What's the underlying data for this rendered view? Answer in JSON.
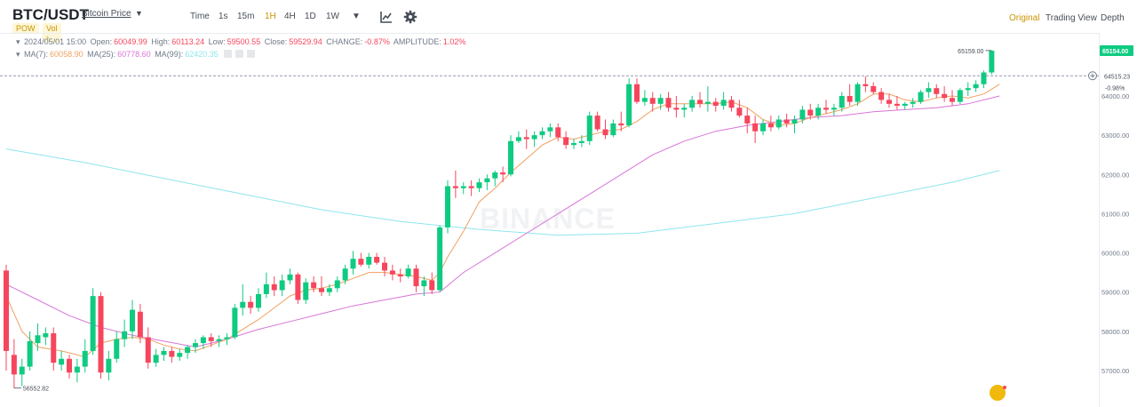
{
  "header": {
    "pair": "BTC/USDT",
    "pair_link": "Bitcoin Price",
    "tag_pow": "POW",
    "tag_vol": "Vol",
    "intervals": [
      "Time",
      "1s",
      "15m",
      "1H",
      "4H",
      "1D",
      "1W"
    ],
    "active_interval": "1H",
    "views": [
      "Original",
      "Trading View",
      "Depth"
    ],
    "active_view": "Original",
    "icons": [
      "chevron-down-icon",
      "indicator-icon",
      "settings-gear-icon"
    ]
  },
  "legend": {
    "candle_line": {
      "datetime": "2024/05/01 15:00",
      "open_label": "Open:",
      "open": "60049.99",
      "high_label": "High:",
      "high": "60113.24",
      "low_label": "Low:",
      "low": "59500.55",
      "close_label": "Close:",
      "close": "59529.94",
      "change_label": "CHANGE:",
      "change": "-0.87%",
      "amplitude_label": "AMPLITUDE:",
      "amplitude": "1.02%"
    },
    "ma_line": {
      "ma7_label": "MA(7):",
      "ma7": "60058.90",
      "ma25_label": "MA(25):",
      "ma25": "60778.60",
      "ma99_label": "MA(99):",
      "ma99": "62420.35"
    }
  },
  "watermark": "BINANCE",
  "annotations": {
    "high_marker": "65159.00",
    "low_marker": "56552.82",
    "crosshair_price": "64515.23",
    "crosshair_change": "-0.98%",
    "last_price": "65154.00"
  },
  "colors": {
    "up": "#0ecb81",
    "down": "#f6465d",
    "ma7": "#f0a060",
    "ma25": "#d875d8",
    "ma99": "#8ee6ee",
    "accent": "#c99400"
  },
  "chart_data": {
    "type": "candlestick",
    "y_ticks": [
      57000,
      58000,
      59000,
      60000,
      61000,
      62000,
      63000,
      64000
    ],
    "y_tick_labels": [
      "57000.00",
      "58000.00",
      "59000.00",
      "60000.00",
      "61000.00",
      "62000.00",
      "63000.00",
      "64000.00"
    ],
    "ylim": [
      56300,
      65800
    ],
    "grid": false,
    "candles": [
      [
        59550,
        59700,
        57000,
        57500
      ],
      [
        57400,
        57800,
        56553,
        56900
      ],
      [
        56900,
        57300,
        56600,
        57100
      ],
      [
        57100,
        58000,
        57000,
        57750
      ],
      [
        57700,
        58200,
        57500,
        57900
      ],
      [
        57850,
        58100,
        57650,
        57950
      ],
      [
        57950,
        58100,
        57000,
        57200
      ],
      [
        57150,
        57500,
        57000,
        57300
      ],
      [
        57300,
        57400,
        56800,
        56950
      ],
      [
        56950,
        57300,
        56700,
        57100
      ],
      [
        57100,
        57800,
        56950,
        57500
      ],
      [
        57500,
        59100,
        57400,
        58900
      ],
      [
        58900,
        59000,
        56800,
        56950
      ],
      [
        56950,
        57500,
        56750,
        57300
      ],
      [
        57300,
        58000,
        57200,
        57800
      ],
      [
        57800,
        58300,
        57600,
        58000
      ],
      [
        58000,
        58800,
        57800,
        58550
      ],
      [
        58500,
        58700,
        57700,
        57850
      ],
      [
        57850,
        58100,
        57050,
        57200
      ],
      [
        57200,
        57550,
        57100,
        57400
      ],
      [
        57400,
        57600,
        57250,
        57500
      ],
      [
        57500,
        57600,
        57200,
        57350
      ],
      [
        57350,
        57550,
        57250,
        57450
      ],
      [
        57450,
        57650,
        57300,
        57600
      ],
      [
        57600,
        57800,
        57450,
        57700
      ],
      [
        57700,
        57900,
        57550,
        57850
      ],
      [
        57850,
        57950,
        57600,
        57750
      ],
      [
        57750,
        57900,
        57600,
        57800
      ],
      [
        57800,
        57950,
        57650,
        57850
      ],
      [
        57850,
        58700,
        57800,
        58600
      ],
      [
        58600,
        59200,
        58400,
        58750
      ],
      [
        58750,
        58900,
        58450,
        58600
      ],
      [
        58600,
        59100,
        58500,
        58950
      ],
      [
        58950,
        59500,
        58850,
        59200
      ],
      [
        59200,
        59400,
        58900,
        59050
      ],
      [
        59050,
        59450,
        58900,
        59300
      ],
      [
        59300,
        59600,
        59200,
        59450
      ],
      [
        59450,
        59500,
        58700,
        58800
      ],
      [
        58800,
        59350,
        58700,
        59250
      ],
      [
        59250,
        59400,
        59000,
        59100
      ],
      [
        59100,
        59400,
        58900,
        59000
      ],
      [
        59000,
        59200,
        58900,
        59100
      ],
      [
        59100,
        59400,
        59000,
        59300
      ],
      [
        59300,
        59700,
        59200,
        59600
      ],
      [
        59600,
        60050,
        59450,
        59850
      ],
      [
        59850,
        60000,
        59650,
        59700
      ],
      [
        59700,
        60000,
        59600,
        59900
      ],
      [
        59900,
        60000,
        59700,
        59750
      ],
      [
        59750,
        59900,
        59400,
        59550
      ],
      [
        59550,
        59700,
        59300,
        59450
      ],
      [
        59450,
        59600,
        59250,
        59400
      ],
      [
        59400,
        59700,
        59350,
        59600
      ],
      [
        59600,
        59700,
        59000,
        59150
      ],
      [
        59150,
        59400,
        58900,
        59300
      ],
      [
        59300,
        59500,
        58950,
        59050
      ],
      [
        59050,
        60700,
        59000,
        60650
      ],
      [
        60650,
        61850,
        60500,
        61700
      ],
      [
        61700,
        62100,
        61400,
        61650
      ],
      [
        61650,
        61800,
        61500,
        61700
      ],
      [
        61700,
        61850,
        61450,
        61650
      ],
      [
        61650,
        61900,
        61550,
        61800
      ],
      [
        61800,
        62000,
        61600,
        61900
      ],
      [
        61900,
        62100,
        61700,
        62050
      ],
      [
        62050,
        62200,
        61800,
        62000
      ],
      [
        62000,
        63000,
        61950,
        62850
      ],
      [
        62850,
        63100,
        62800,
        62950
      ],
      [
        62950,
        63150,
        62650,
        62900
      ],
      [
        62900,
        63100,
        62700,
        63000
      ],
      [
        63000,
        63200,
        62900,
        63100
      ],
      [
        63100,
        63300,
        62950,
        63200
      ],
      [
        63200,
        63300,
        62850,
        62950
      ],
      [
        62950,
        63100,
        62650,
        62750
      ],
      [
        62750,
        62900,
        62650,
        62800
      ],
      [
        62800,
        63000,
        62700,
        62850
      ],
      [
        62850,
        63600,
        62750,
        63500
      ],
      [
        63500,
        63600,
        63100,
        63150
      ],
      [
        63150,
        63400,
        62900,
        63000
      ],
      [
        63000,
        63400,
        62950,
        63300
      ],
      [
        63300,
        63600,
        63100,
        63250
      ],
      [
        63250,
        64450,
        63200,
        64300
      ],
      [
        64300,
        64450,
        63800,
        63850
      ],
      [
        63850,
        64150,
        63750,
        63950
      ],
      [
        63950,
        64100,
        63600,
        63800
      ],
      [
        63800,
        64050,
        63650,
        63950
      ],
      [
        63950,
        64100,
        63600,
        63700
      ],
      [
        63700,
        64000,
        63450,
        63650
      ],
      [
        63650,
        63800,
        63450,
        63700
      ],
      [
        63700,
        64000,
        63600,
        63900
      ],
      [
        63900,
        64100,
        63700,
        63800
      ],
      [
        63800,
        64250,
        63600,
        63850
      ],
      [
        63850,
        63950,
        63600,
        63750
      ],
      [
        63750,
        64100,
        63650,
        63900
      ],
      [
        63900,
        64000,
        63600,
        63700
      ],
      [
        63700,
        63900,
        63450,
        63500
      ],
      [
        63500,
        63700,
        63050,
        63300
      ],
      [
        63300,
        63500,
        62800,
        63100
      ],
      [
        63100,
        63400,
        63000,
        63300
      ],
      [
        63300,
        63500,
        63100,
        63200
      ],
      [
        63200,
        63500,
        63150,
        63400
      ],
      [
        63400,
        63550,
        63200,
        63300
      ],
      [
        63300,
        63500,
        63050,
        63400
      ],
      [
        63400,
        63750,
        63300,
        63650
      ],
      [
        63650,
        63800,
        63400,
        63500
      ],
      [
        63500,
        63800,
        63400,
        63700
      ],
      [
        63700,
        63900,
        63550,
        63650
      ],
      [
        63650,
        63800,
        63500,
        63700
      ],
      [
        63700,
        64100,
        63600,
        64000
      ],
      [
        64000,
        64300,
        63750,
        63850
      ],
      [
        63850,
        64350,
        63750,
        64300
      ],
      [
        64300,
        64500,
        64100,
        64250
      ],
      [
        64250,
        64350,
        64050,
        64100
      ],
      [
        64100,
        64200,
        63800,
        63900
      ],
      [
        63900,
        64050,
        63700,
        63800
      ],
      [
        63800,
        64000,
        63650,
        63750
      ],
      [
        63750,
        63850,
        63650,
        63800
      ],
      [
        63800,
        63950,
        63700,
        63850
      ],
      [
        63850,
        64150,
        63800,
        64100
      ],
      [
        64100,
        64350,
        63950,
        64200
      ],
      [
        64200,
        64300,
        63950,
        64050
      ],
      [
        64050,
        64250,
        63850,
        63950
      ],
      [
        63950,
        64150,
        63750,
        63850
      ],
      [
        63850,
        64200,
        63800,
        64150
      ],
      [
        64150,
        64350,
        64000,
        64200
      ],
      [
        64200,
        64400,
        64100,
        64300
      ],
      [
        64300,
        64650,
        64200,
        64600
      ],
      [
        64600,
        65159,
        64550,
        65154
      ]
    ],
    "ma7": [
      [
        0,
        58900
      ],
      [
        2,
        58000
      ],
      [
        4,
        57600
      ],
      [
        7,
        57500
      ],
      [
        10,
        57350
      ],
      [
        12,
        57700
      ],
      [
        14,
        57800
      ],
      [
        16,
        57850
      ],
      [
        18,
        57800
      ],
      [
        20,
        57650
      ],
      [
        22,
        57550
      ],
      [
        24,
        57500
      ],
      [
        26,
        57650
      ],
      [
        28,
        57800
      ],
      [
        30,
        58050
      ],
      [
        32,
        58300
      ],
      [
        34,
        58600
      ],
      [
        36,
        58900
      ],
      [
        38,
        59050
      ],
      [
        40,
        59100
      ],
      [
        42,
        59200
      ],
      [
        44,
        59350
      ],
      [
        46,
        59500
      ],
      [
        48,
        59500
      ],
      [
        50,
        59450
      ],
      [
        52,
        59400
      ],
      [
        54,
        59300
      ],
      [
        55,
        59500
      ],
      [
        56,
        59900
      ],
      [
        58,
        60550
      ],
      [
        60,
        61300
      ],
      [
        62,
        61650
      ],
      [
        64,
        62050
      ],
      [
        66,
        62400
      ],
      [
        68,
        62750
      ],
      [
        70,
        62950
      ],
      [
        72,
        62900
      ],
      [
        74,
        63000
      ],
      [
        76,
        63100
      ],
      [
        78,
        63150
      ],
      [
        80,
        63350
      ],
      [
        82,
        63650
      ],
      [
        84,
        63800
      ],
      [
        86,
        63800
      ],
      [
        88,
        63800
      ],
      [
        90,
        63800
      ],
      [
        92,
        63850
      ],
      [
        94,
        63700
      ],
      [
        96,
        63400
      ],
      [
        98,
        63250
      ],
      [
        100,
        63300
      ],
      [
        102,
        63450
      ],
      [
        104,
        63550
      ],
      [
        106,
        63650
      ],
      [
        108,
        63800
      ],
      [
        110,
        64050
      ],
      [
        112,
        64050
      ],
      [
        114,
        63900
      ],
      [
        116,
        63850
      ],
      [
        118,
        63950
      ],
      [
        120,
        64000
      ],
      [
        122,
        63950
      ],
      [
        124,
        64050
      ],
      [
        126,
        64300
      ]
    ],
    "ma25": [
      [
        0,
        59200
      ],
      [
        4,
        58800
      ],
      [
        8,
        58400
      ],
      [
        12,
        58100
      ],
      [
        16,
        57900
      ],
      [
        20,
        57750
      ],
      [
        24,
        57600
      ],
      [
        28,
        57800
      ],
      [
        32,
        58050
      ],
      [
        36,
        58250
      ],
      [
        40,
        58450
      ],
      [
        44,
        58650
      ],
      [
        48,
        58800
      ],
      [
        52,
        58950
      ],
      [
        55,
        59000
      ],
      [
        58,
        59500
      ],
      [
        62,
        60000
      ],
      [
        66,
        60500
      ],
      [
        70,
        61000
      ],
      [
        74,
        61500
      ],
      [
        78,
        62000
      ],
      [
        82,
        62500
      ],
      [
        86,
        62850
      ],
      [
        90,
        63100
      ],
      [
        94,
        63250
      ],
      [
        98,
        63350
      ],
      [
        102,
        63450
      ],
      [
        106,
        63500
      ],
      [
        110,
        63600
      ],
      [
        114,
        63650
      ],
      [
        118,
        63700
      ],
      [
        122,
        63800
      ],
      [
        126,
        64000
      ]
    ],
    "ma99": [
      [
        0,
        62650
      ],
      [
        10,
        62300
      ],
      [
        20,
        61900
      ],
      [
        30,
        61500
      ],
      [
        40,
        61100
      ],
      [
        50,
        60800
      ],
      [
        60,
        60600
      ],
      [
        70,
        60450
      ],
      [
        80,
        60500
      ],
      [
        90,
        60750
      ],
      [
        100,
        61000
      ],
      [
        110,
        61400
      ],
      [
        120,
        61800
      ],
      [
        126,
        62100
      ]
    ]
  }
}
